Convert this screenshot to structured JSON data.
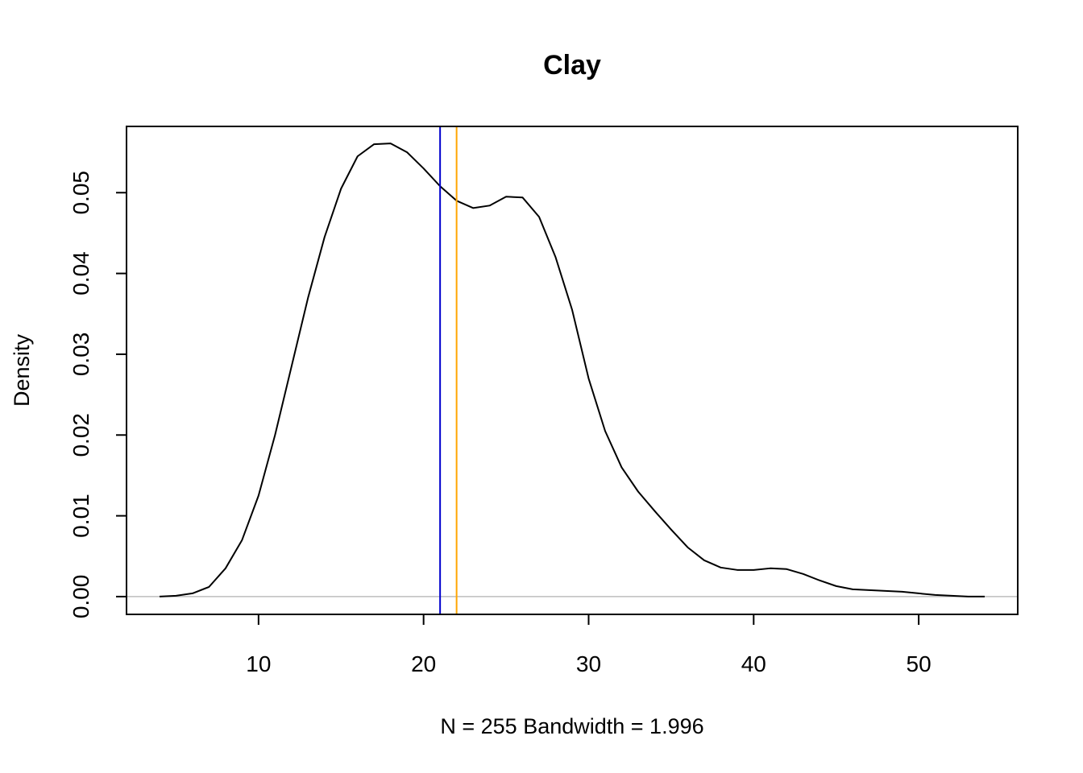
{
  "chart_data": {
    "type": "line",
    "title": "Clay",
    "xlabel": "N = 255   Bandwidth = 1.996",
    "ylabel": "Density",
    "xlim": [
      2.0,
      56.0
    ],
    "ylim": [
      -0.0022,
      0.0582
    ],
    "x_ticks": [
      10,
      20,
      30,
      40,
      50
    ],
    "y_ticks": [
      0.0,
      0.01,
      0.02,
      0.03,
      0.04,
      0.05
    ],
    "y_tick_labels": [
      "0.00",
      "0.01",
      "0.02",
      "0.03",
      "0.04",
      "0.05"
    ],
    "grid": false,
    "legend": "none",
    "baseline": {
      "y": 0,
      "color": "#bebebe"
    },
    "series": [
      {
        "color": "#000000",
        "x": [
          4.0,
          5.0,
          6.0,
          7.0,
          8.0,
          9.0,
          10.0,
          11.0,
          12.0,
          13.0,
          14.0,
          15.0,
          16.0,
          17.0,
          18.0,
          19.0,
          20.0,
          21.0,
          22.0,
          23.0,
          24.0,
          25.0,
          26.0,
          27.0,
          28.0,
          29.0,
          30.0,
          31.0,
          32.0,
          33.0,
          34.0,
          35.0,
          36.0,
          37.0,
          38.0,
          39.0,
          40.0,
          41.0,
          42.0,
          43.0,
          44.0,
          45.0,
          46.0,
          47.0,
          48.0,
          49.0,
          50.0,
          51.0,
          52.0,
          53.0,
          54.0
        ],
        "y": [
          0.0,
          0.0001,
          0.0004,
          0.0012,
          0.0035,
          0.007,
          0.0125,
          0.02,
          0.0285,
          0.037,
          0.0445,
          0.0505,
          0.0545,
          0.056,
          0.0561,
          0.055,
          0.053,
          0.0508,
          0.049,
          0.0481,
          0.0484,
          0.0495,
          0.0494,
          0.047,
          0.042,
          0.0355,
          0.027,
          0.0205,
          0.016,
          0.013,
          0.0106,
          0.0083,
          0.0061,
          0.0045,
          0.0036,
          0.0033,
          0.0033,
          0.0035,
          0.0034,
          0.0028,
          0.002,
          0.0013,
          0.0009,
          0.0008,
          0.0007,
          0.0006,
          0.0004,
          0.0002,
          0.0001,
          0.0,
          0.0
        ]
      }
    ],
    "vlines": [
      {
        "x": 21.0,
        "color": "#0000cd"
      },
      {
        "x": 22.0,
        "color": "#ffa500"
      }
    ]
  }
}
